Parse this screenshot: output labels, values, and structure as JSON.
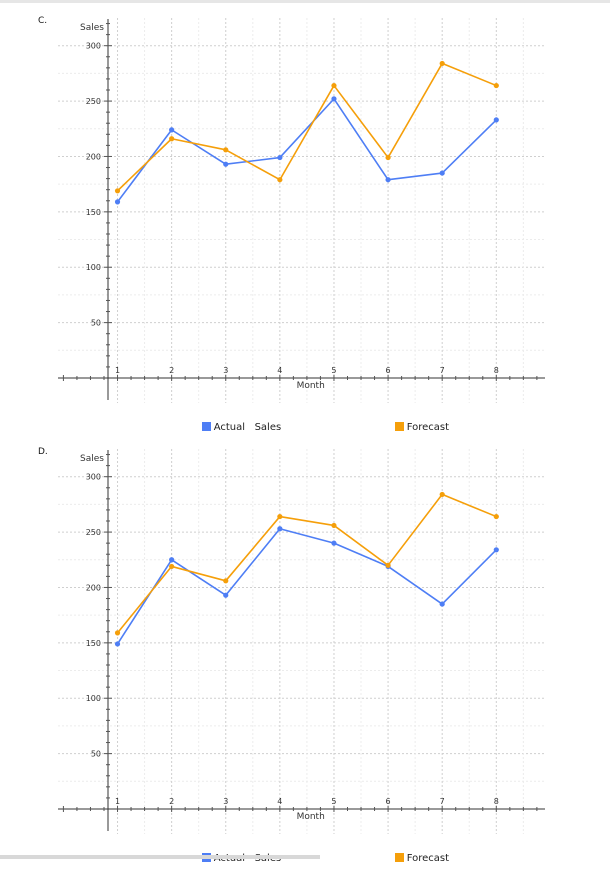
{
  "charts": [
    {
      "label": "C.",
      "chart_data": {
        "type": "line",
        "x": [
          1,
          2,
          3,
          4,
          5,
          6,
          7,
          8
        ],
        "series": [
          {
            "name": "Actual Sales",
            "color": "#4e7ef5",
            "values": [
              159,
              224,
              193,
              199,
              252,
              179,
              185,
              233
            ]
          },
          {
            "name": "Forecast",
            "color": "#f59f0a",
            "values": [
              169,
              216,
              206,
              179,
              264,
              199,
              284,
              264
            ]
          }
        ],
        "xlabel": "Month",
        "ylabel": "Sales",
        "yticks": [
          50,
          100,
          150,
          200,
          250,
          300
        ],
        "xticks": [
          1,
          2,
          3,
          4,
          5,
          6,
          7,
          8
        ],
        "ylim": [
          0,
          325
        ],
        "xlim": [
          -0.1,
          8.9
        ],
        "grid": true,
        "legend": "bottom"
      },
      "legend_labels": [
        "Actual   Sales",
        "Forecast"
      ]
    },
    {
      "label": "D.",
      "chart_data": {
        "type": "line",
        "x": [
          1,
          2,
          3,
          4,
          5,
          6,
          7,
          8
        ],
        "series": [
          {
            "name": "Actual Sales",
            "color": "#4e7ef5",
            "values": [
              149,
              225,
              193,
              253,
              240,
              219,
              185,
              234
            ]
          },
          {
            "name": "Forecast",
            "color": "#f59f0a",
            "values": [
              159,
              219,
              206,
              264,
              256,
              220,
              284,
              264
            ]
          }
        ],
        "xlabel": "Month",
        "ylabel": "Sales",
        "yticks": [
          50,
          100,
          150,
          200,
          250,
          300
        ],
        "xticks": [
          1,
          2,
          3,
          4,
          5,
          6,
          7,
          8
        ],
        "ylim": [
          0,
          325
        ],
        "xlim": [
          -0.1,
          8.9
        ],
        "grid": true,
        "legend": "bottom"
      },
      "legend_labels": [
        "Actual   Sales",
        "Forecast"
      ]
    }
  ]
}
